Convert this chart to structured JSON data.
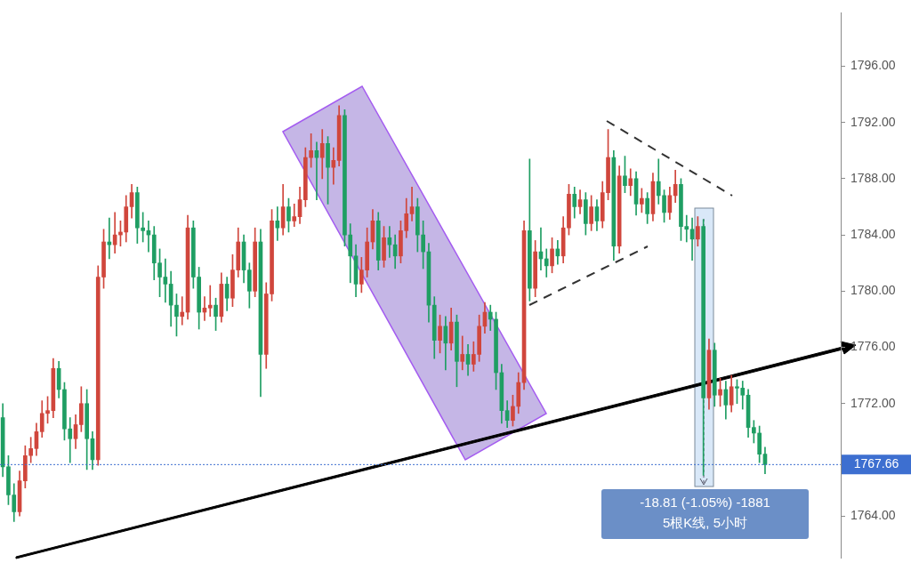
{
  "chart_data": {
    "type": "candlestick",
    "categories": [
      null,
      null,
      null,
      null,
      null,
      null,
      null,
      null,
      null,
      null,
      null,
      null,
      null,
      null,
      null,
      null,
      null,
      null,
      null,
      null,
      null,
      null,
      null,
      null,
      null,
      null,
      null,
      null,
      null,
      null,
      null,
      null,
      null,
      null,
      null,
      null,
      null,
      null,
      null,
      null,
      null,
      null,
      null,
      null,
      null,
      null,
      null,
      null,
      null,
      null,
      null,
      null,
      null,
      null,
      null,
      null,
      null,
      null,
      null,
      null,
      null,
      null,
      null,
      null,
      null,
      null,
      null,
      null,
      null,
      null,
      null,
      null,
      null,
      null,
      null,
      null,
      null,
      null,
      null,
      null,
      null,
      null,
      null,
      null,
      null,
      null,
      null,
      null,
      null,
      null,
      null,
      null,
      null,
      null,
      null,
      null,
      null,
      null,
      null,
      null,
      null,
      null,
      null,
      null,
      null,
      null,
      null,
      null,
      null,
      null,
      null,
      null,
      null,
      null,
      null,
      null,
      null,
      null,
      null,
      null,
      null,
      null,
      null,
      null,
      null,
      null,
      null,
      null,
      null,
      null,
      null,
      null,
      null,
      null,
      null,
      null,
      null,
      null,
      null,
      null,
      null,
      null,
      null,
      null,
      null,
      null,
      null,
      null,
      null,
      null
    ],
    "ohlc": [
      [
        1771,
        1772,
        1766.8,
        1767.5
      ],
      [
        1767.5,
        1768.3,
        1764.8,
        1765.5
      ],
      [
        1765.5,
        1766.3,
        1763.6,
        1764.3
      ],
      [
        1764.3,
        1767.2,
        1764,
        1766.5
      ],
      [
        1766.5,
        1769,
        1766,
        1768.3
      ],
      [
        1768.3,
        1769.6,
        1767.8,
        1768.8
      ],
      [
        1768.8,
        1770.6,
        1768.3,
        1770
      ],
      [
        1770,
        1772.2,
        1769.6,
        1771.3
      ],
      [
        1771.3,
        1772.5,
        1770.6,
        1771.5
      ],
      [
        1771.5,
        1775.2,
        1771,
        1774.5
      ],
      [
        1774.5,
        1775,
        1772.4,
        1773
      ],
      [
        1773,
        1773.5,
        1769.4,
        1770.2
      ],
      [
        1770.2,
        1771,
        1767.8,
        1769.5
      ],
      [
        1769.5,
        1771.2,
        1768.8,
        1770.5
      ],
      [
        1770.5,
        1773.2,
        1770,
        1772
      ],
      [
        1772,
        1773,
        1767.3,
        1769.5
      ],
      [
        1769.5,
        1770,
        1767.3,
        1768
      ],
      [
        1768,
        1781.8,
        1767.6,
        1781
      ],
      [
        1781,
        1784.4,
        1780.2,
        1783.5
      ],
      [
        1783.5,
        1785.2,
        1782.3,
        1783.3
      ],
      [
        1783.3,
        1785.6,
        1782.7,
        1784
      ],
      [
        1784,
        1785,
        1783.2,
        1784.2
      ],
      [
        1784.2,
        1786.8,
        1783.5,
        1786
      ],
      [
        1786,
        1787.6,
        1785.2,
        1787
      ],
      [
        1787,
        1787.4,
        1783.4,
        1784.5
      ],
      [
        1784.5,
        1785.6,
        1783.5,
        1784.3
      ],
      [
        1784.3,
        1785,
        1782.8,
        1784
      ],
      [
        1784,
        1784.6,
        1780.8,
        1782
      ],
      [
        1782,
        1783,
        1779.6,
        1781
      ],
      [
        1781,
        1782.3,
        1779.2,
        1780.5
      ],
      [
        1780.5,
        1781.4,
        1777.5,
        1779
      ],
      [
        1779,
        1779.8,
        1776.8,
        1778.2
      ],
      [
        1778.2,
        1779.6,
        1777.6,
        1778.5
      ],
      [
        1778.5,
        1785.4,
        1778,
        1784.5
      ],
      [
        1784.5,
        1785,
        1780.2,
        1781
      ],
      [
        1781,
        1781.7,
        1777.3,
        1778.5
      ],
      [
        1778.5,
        1779.6,
        1777.9,
        1778.8
      ],
      [
        1778.8,
        1780.4,
        1778.2,
        1779
      ],
      [
        1779,
        1779.5,
        1777.2,
        1778.2
      ],
      [
        1778.2,
        1781.3,
        1777.8,
        1780.5
      ],
      [
        1780.5,
        1781,
        1778.6,
        1779.5
      ],
      [
        1779.5,
        1782.6,
        1778.9,
        1781.5
      ],
      [
        1781.5,
        1784.5,
        1781,
        1783.5
      ],
      [
        1783.5,
        1784,
        1780.6,
        1781.5
      ],
      [
        1781.5,
        1782,
        1778.8,
        1780
      ],
      [
        1780,
        1784.5,
        1779.6,
        1783.5
      ],
      [
        1783.5,
        1784.4,
        1772.5,
        1775.5
      ],
      [
        1775.5,
        1780.6,
        1774.5,
        1779.8
      ],
      [
        1779.8,
        1785.8,
        1779.3,
        1785
      ],
      [
        1785,
        1786,
        1783.6,
        1784.5
      ],
      [
        1784.5,
        1787.6,
        1784,
        1786
      ],
      [
        1786,
        1786.6,
        1784.2,
        1785
      ],
      [
        1785,
        1786.2,
        1784.6,
        1785.3
      ],
      [
        1785.3,
        1787.4,
        1784.8,
        1786.5
      ],
      [
        1786.5,
        1790.2,
        1786,
        1789.5
      ],
      [
        1789.5,
        1791.2,
        1788.8,
        1790
      ],
      [
        1790,
        1790.6,
        1786.5,
        1789.5
      ],
      [
        1789.5,
        1791.5,
        1788,
        1790.5
      ],
      [
        1790.5,
        1791,
        1786.2,
        1788.8
      ],
      [
        1788.8,
        1790.2,
        1787.6,
        1789.3
      ],
      [
        1789.3,
        1793.2,
        1788.9,
        1792.5
      ],
      [
        1792.5,
        1792.9,
        1783.2,
        1784
      ],
      [
        1784,
        1784.8,
        1780.6,
        1782.5
      ],
      [
        1782.5,
        1783.3,
        1779.6,
        1780.5
      ],
      [
        1780.5,
        1782.4,
        1779.9,
        1781.5
      ],
      [
        1781.5,
        1784.5,
        1781,
        1783.5
      ],
      [
        1783.5,
        1785.8,
        1783,
        1785
      ],
      [
        1785,
        1785.6,
        1781.5,
        1782.2
      ],
      [
        1782.2,
        1784.6,
        1781.7,
        1783.8
      ],
      [
        1783.8,
        1784.6,
        1782.4,
        1783.3
      ],
      [
        1783.3,
        1784,
        1781.6,
        1782.5
      ],
      [
        1782.5,
        1785,
        1782,
        1784.3
      ],
      [
        1784.3,
        1786.6,
        1783.8,
        1785.5
      ],
      [
        1785.5,
        1787.4,
        1785,
        1786
      ],
      [
        1786,
        1786.6,
        1782.8,
        1784
      ],
      [
        1784,
        1785,
        1781.6,
        1782.8
      ],
      [
        1782.8,
        1783.4,
        1777.8,
        1779
      ],
      [
        1779,
        1779.6,
        1775.2,
        1776.5
      ],
      [
        1776.5,
        1778.3,
        1775.6,
        1777.5
      ],
      [
        1777.5,
        1778.2,
        1774.4,
        1776.3
      ],
      [
        1776.3,
        1778.8,
        1775.8,
        1777.8
      ],
      [
        1777.8,
        1778.3,
        1773.2,
        1775
      ],
      [
        1775,
        1776.8,
        1774.4,
        1775.5
      ],
      [
        1775.5,
        1776.2,
        1774,
        1774.8
      ],
      [
        1774.8,
        1776.4,
        1774.3,
        1775.5
      ],
      [
        1775.5,
        1778.3,
        1775,
        1777.5
      ],
      [
        1777.5,
        1779.2,
        1777,
        1778.5
      ],
      [
        1778.5,
        1779,
        1777.2,
        1778
      ],
      [
        1778,
        1778.5,
        1773,
        1774.2
      ],
      [
        1774.2,
        1774.8,
        1770.6,
        1771.5
      ],
      [
        1771.5,
        1772.2,
        1770.3,
        1770.8
      ],
      [
        1770.8,
        1772.6,
        1770.4,
        1771.8
      ],
      [
        1771.8,
        1774.2,
        1771.3,
        1773.5
      ],
      [
        1773.5,
        1785,
        1773,
        1784.3
      ],
      [
        1784.3,
        1789.4,
        1779.3,
        1780.2
      ],
      [
        1780.2,
        1783.6,
        1779.6,
        1782.8
      ],
      [
        1782.8,
        1784.5,
        1781.5,
        1782.3
      ],
      [
        1782.3,
        1783,
        1781,
        1781.8
      ],
      [
        1781.8,
        1783.8,
        1781.3,
        1783
      ],
      [
        1783,
        1783.6,
        1781.9,
        1782.5
      ],
      [
        1782.5,
        1785.3,
        1782,
        1784.5
      ],
      [
        1784.5,
        1787.6,
        1784,
        1786.9
      ],
      [
        1786.9,
        1787.4,
        1785.2,
        1786
      ],
      [
        1786,
        1787.2,
        1785.5,
        1786.5
      ],
      [
        1786.5,
        1787,
        1784,
        1784.8
      ],
      [
        1784.8,
        1786.8,
        1784.3,
        1786
      ],
      [
        1786,
        1786.5,
        1784.3,
        1785
      ],
      [
        1785,
        1787.8,
        1784.5,
        1787
      ],
      [
        1787,
        1791.5,
        1786.5,
        1789.5
      ],
      [
        1789.5,
        1790,
        1782.2,
        1783.2
      ],
      [
        1783.2,
        1788.9,
        1782.7,
        1788.2
      ],
      [
        1788.2,
        1789.6,
        1787,
        1787.5
      ],
      [
        1787.5,
        1788.7,
        1786.8,
        1788
      ],
      [
        1788,
        1788.5,
        1785.4,
        1786.2
      ],
      [
        1786.2,
        1787.3,
        1785.6,
        1786.6
      ],
      [
        1786.6,
        1787,
        1784.8,
        1785.5
      ],
      [
        1785.5,
        1788.4,
        1785,
        1787.8
      ],
      [
        1787.8,
        1789.4,
        1786.2,
        1786.8
      ],
      [
        1786.8,
        1787.2,
        1784.9,
        1785.6
      ],
      [
        1785.6,
        1787.4,
        1785.1,
        1786.8
      ],
      [
        1786.8,
        1788.6,
        1786.3,
        1787.6
      ],
      [
        1787.6,
        1788,
        1783.6,
        1784.6
      ],
      [
        1784.6,
        1785.4,
        1783.5,
        1784.4
      ],
      [
        1784.4,
        1785.2,
        1782.2,
        1783.7
      ],
      [
        1783.7,
        1785.3,
        1783.2,
        1784.6
      ],
      [
        1784.6,
        1785.1,
        1766.9,
        1772.4
      ],
      [
        1772.4,
        1776.6,
        1771.6,
        1775.8
      ],
      [
        1775.8,
        1776.3,
        1771.8,
        1772.6
      ],
      [
        1772.6,
        1773.8,
        1771.8,
        1773
      ],
      [
        1773,
        1773.6,
        1770.9,
        1771.9
      ],
      [
        1771.9,
        1774,
        1771.4,
        1773.2
      ],
      [
        1773.2,
        1773.7,
        1772,
        1773.1
      ],
      [
        1773.1,
        1773.6,
        1771.6,
        1772.6
      ],
      [
        1772.6,
        1773,
        1769.6,
        1770.3
      ],
      [
        1770.3,
        1770.8,
        1769.2,
        1769.9
      ],
      [
        1769.9,
        1770.4,
        1767.8,
        1768.4
      ],
      [
        1768.4,
        1768.9,
        1767,
        1767.66
      ],
      null,
      null,
      null,
      null,
      null,
      null,
      null,
      null,
      null,
      null,
      null,
      null,
      null
    ],
    "colors": [
      "#1f9e63",
      "#1f9e63",
      "#1f9e63",
      "#d0463c",
      "#d0463c",
      "#d0463c",
      "#d0463c",
      "#d0463c",
      "#d0463c",
      "#d0463c",
      "#1f9e63",
      "#1f9e63",
      "#1f9e63",
      "#d0463c",
      "#d0463c",
      "#1f9e63",
      "#1f9e63",
      "#d0463c",
      "#d0463c",
      "#1f9e63",
      "#d0463c",
      "#d0463c",
      "#d0463c",
      "#d0463c",
      "#1f9e63",
      "#1f9e63",
      "#1f9e63",
      "#1f9e63",
      "#1f9e63",
      "#1f9e63",
      "#1f9e63",
      "#1f9e63",
      "#d0463c",
      "#d0463c",
      "#1f9e63",
      "#1f9e63",
      "#d0463c",
      "#d0463c",
      "#1f9e63",
      "#d0463c",
      "#1f9e63",
      "#d0463c",
      "#d0463c",
      "#1f9e63",
      "#1f9e63",
      "#d0463c",
      "#1f9e63",
      "#d0463c",
      "#d0463c",
      "#1f9e63",
      "#d0463c",
      "#1f9e63",
      "#d0463c",
      "#d0463c",
      "#d0463c",
      "#d0463c",
      "#1f9e63",
      "#d0463c",
      "#1f9e63",
      "#d0463c",
      "#d0463c",
      "#1f9e63",
      "#1f9e63",
      "#1f9e63",
      "#d0463c",
      "#d0463c",
      "#d0463c",
      "#1f9e63",
      "#d0463c",
      "#1f9e63",
      "#1f9e63",
      "#d0463c",
      "#d0463c",
      "#d0463c",
      "#1f9e63",
      "#1f9e63",
      "#1f9e63",
      "#1f9e63",
      "#d0463c",
      "#1f9e63",
      "#d0463c",
      "#1f9e63",
      "#d0463c",
      "#1f9e63",
      "#d0463c",
      "#d0463c",
      "#d0463c",
      "#1f9e63",
      "#1f9e63",
      "#1f9e63",
      "#1f9e63",
      "#d0463c",
      "#d0463c",
      "#d0463c",
      "#1f9e63",
      "#d0463c",
      "#1f9e63",
      "#1f9e63",
      "#d0463c",
      "#1f9e63",
      "#d0463c",
      "#d0463c",
      "#1f9e63",
      "#d0463c",
      "#1f9e63",
      "#d0463c",
      "#1f9e63",
      "#d0463c",
      "#d0463c",
      "#1f9e63",
      "#d0463c",
      "#1f9e63",
      "#d0463c",
      "#1f9e63",
      "#d0463c",
      "#1f9e63",
      "#d0463c",
      "#1f9e63",
      "#1f9e63",
      "#d0463c",
      "#d0463c",
      "#1f9e63",
      "#1f9e63",
      "#1f9e63",
      "#d0463c",
      "#1f9e63",
      "#d0463c",
      "#1f9e63",
      "#d0463c",
      "#1f9e63",
      "#d0463c",
      "#1f9e63",
      "#1f9e63",
      "#1f9e63",
      "#1f9e63",
      "#1f9e63",
      "#1f9e63",
      null,
      null,
      null,
      null,
      null,
      null,
      null,
      null,
      null,
      null,
      null,
      null,
      null
    ],
    "ylim": [
      1761,
      1799.8
    ],
    "yticks": [
      {
        "value": 1764,
        "label": "1764.00"
      },
      {
        "value": 1772,
        "label": "1772.00"
      },
      {
        "value": 1776,
        "label": "1776.00"
      },
      {
        "value": 1780,
        "label": "1780.00"
      },
      {
        "value": 1784,
        "label": "1784.00"
      },
      {
        "value": 1788,
        "label": "1788.00"
      },
      {
        "value": 1792,
        "label": "1792.00"
      },
      {
        "value": 1796,
        "label": "1796.00"
      }
    ],
    "tick_labels": "y",
    "ref_lines": [
      {
        "axis": "y",
        "value": 1767.66,
        "label": "1767.66",
        "color": "#3d6fd0",
        "line_style": "dotted"
      }
    ],
    "annotations": [
      "-18.81 (-1.05%) -1881",
      "5根K线, 5小时"
    ]
  }
}
